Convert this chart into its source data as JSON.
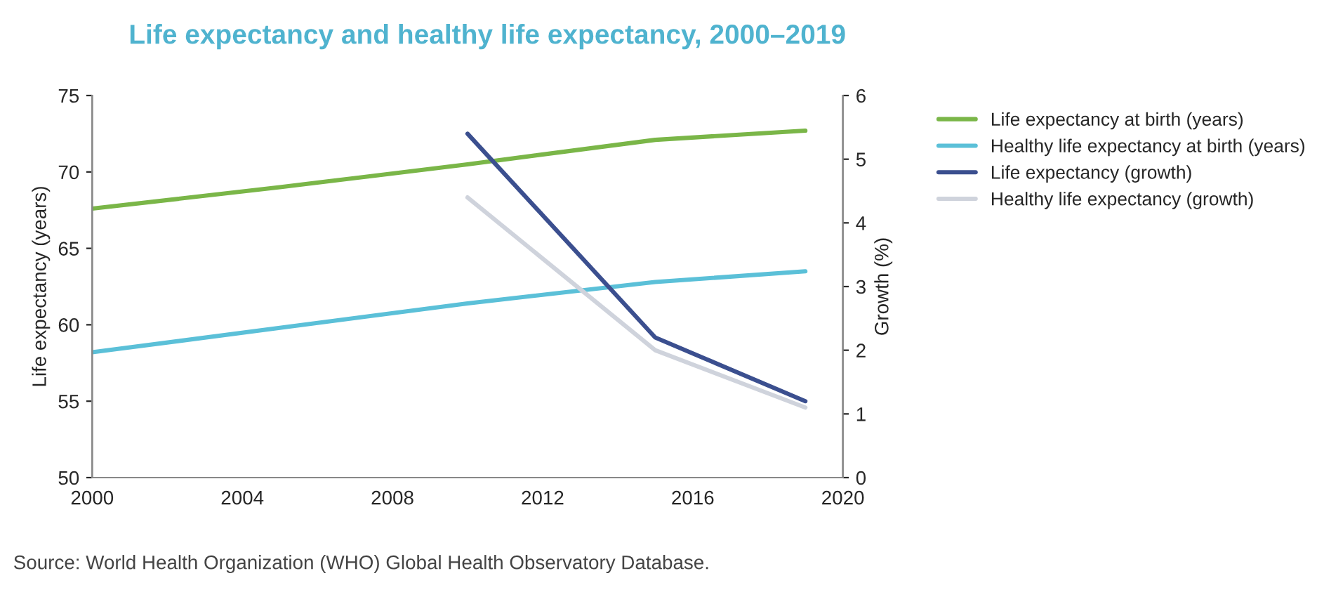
{
  "chart_data": {
    "type": "line",
    "title": "Life expectancy and healthy life expectancy, 2000–2019",
    "ylabel": "Life expectancy (years)",
    "y2label": "Growth (%)",
    "xlim": [
      2000,
      2020
    ],
    "xticks": [
      2000,
      2004,
      2008,
      2012,
      2016,
      2020
    ],
    "ylim": [
      50,
      75
    ],
    "yticks": [
      50,
      55,
      60,
      65,
      70,
      75
    ],
    "y2lim": [
      0,
      6
    ],
    "y2ticks": [
      0,
      1,
      2,
      3,
      4,
      5,
      6
    ],
    "series": [
      {
        "name": "Life expectancy at birth (years)",
        "color": "#7ab648",
        "x": [
          2000,
          2005,
          2010,
          2015,
          2019
        ],
        "values": [
          67.6,
          69.0,
          70.5,
          72.1,
          72.7
        ]
      },
      {
        "name": "Healthy life expectancy at birth (years)",
        "color": "#5bc0d8",
        "x": [
          2000,
          2005,
          2010,
          2015,
          2019
        ],
        "values": [
          58.2,
          59.8,
          61.4,
          62.8,
          63.5
        ]
      },
      {
        "name": "Life expectancy (growth)",
        "color": "#3b4f8f",
        "axis": "y2",
        "x": [
          2010,
          2015,
          2019
        ],
        "values": [
          5.4,
          2.2,
          1.2
        ]
      },
      {
        "name": "Healthy life expectancy (growth)",
        "color": "#cfd3dc",
        "axis": "y2",
        "x": [
          2010,
          2015,
          2019
        ],
        "values": [
          4.4,
          2.0,
          1.1
        ]
      }
    ],
    "legend": "right",
    "grid": false,
    "annotations": [
      "Source: World Health Organization (WHO) Global Health Observatory Database."
    ]
  }
}
